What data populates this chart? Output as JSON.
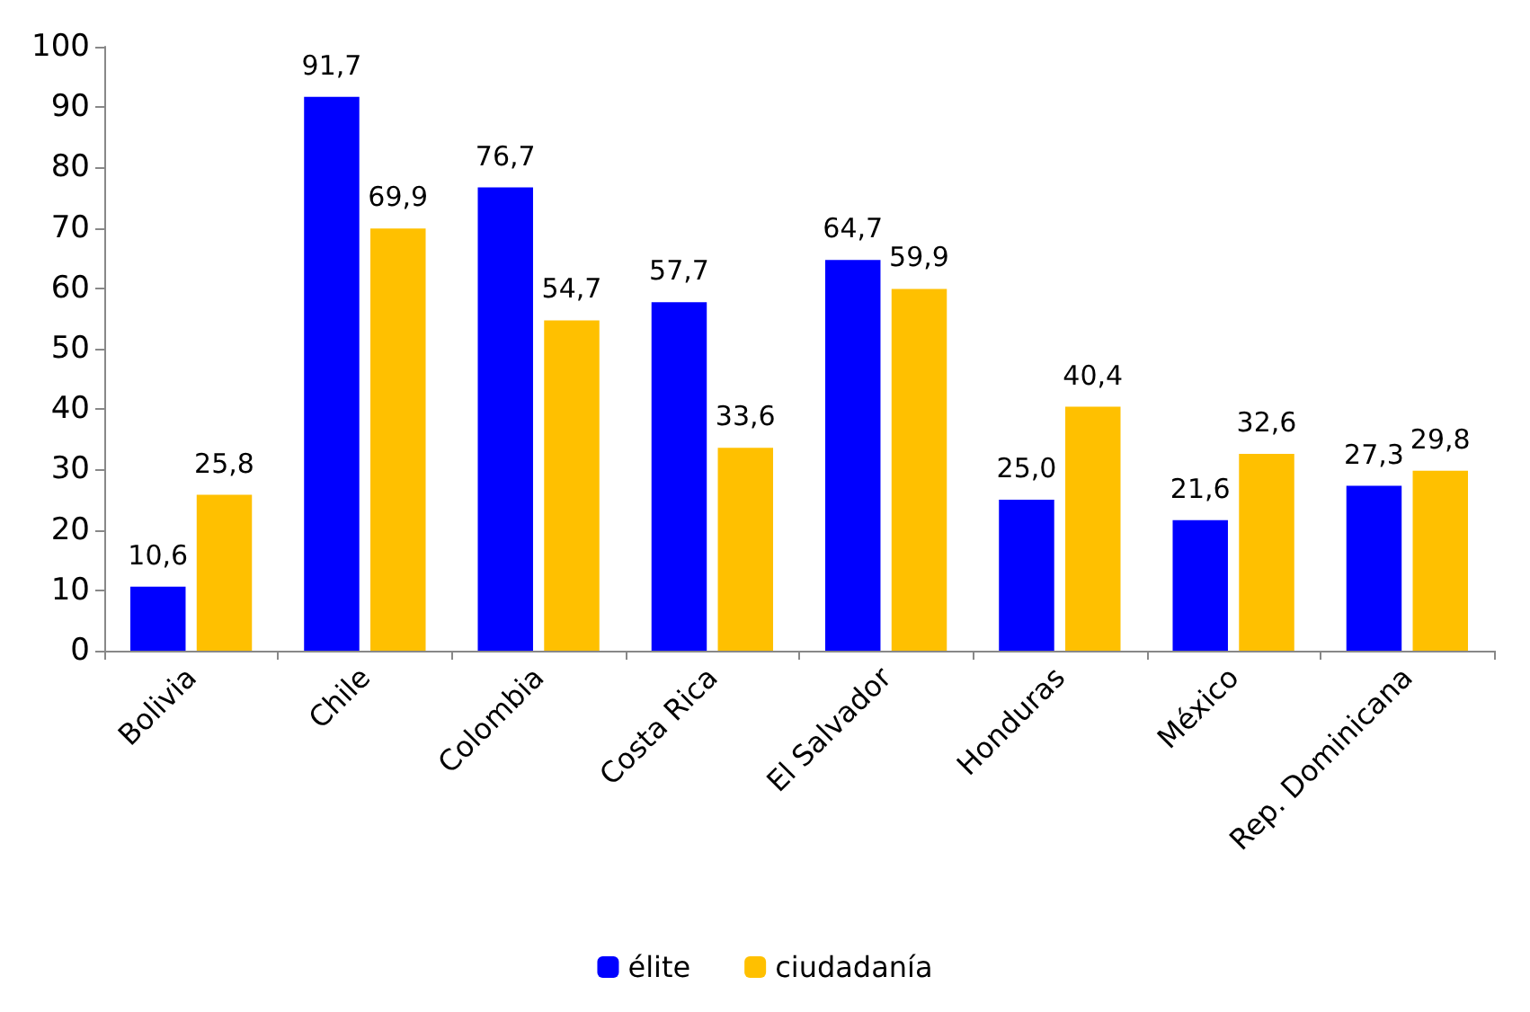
{
  "chart_data": {
    "type": "bar",
    "categories": [
      "Bolivia",
      "Chile",
      "Colombia",
      "Costa Rica",
      "El Salvador",
      "Honduras",
      "México",
      "Rep. Dominicana"
    ],
    "series": [
      {
        "name": "élite",
        "color": "#0000ff",
        "values": [
          10.6,
          91.7,
          76.7,
          57.7,
          64.7,
          25.0,
          21.6,
          27.3
        ],
        "value_labels": [
          "10,6",
          "91,7",
          "76,7",
          "57,7",
          "64,7",
          "25,0",
          "21,6",
          "27,3"
        ]
      },
      {
        "name": "ciudadanía",
        "color": "#ffc000",
        "values": [
          25.8,
          69.9,
          54.7,
          33.6,
          59.9,
          40.4,
          32.6,
          29.8
        ],
        "value_labels": [
          "25,8",
          "69,9",
          "54,7",
          "33,6",
          "59,9",
          "40,4",
          "32,6",
          "29,8"
        ]
      }
    ],
    "ylim": [
      0,
      100
    ],
    "yticks": [
      0,
      10,
      20,
      30,
      40,
      50,
      60,
      70,
      80,
      90,
      100
    ],
    "grid": false,
    "legend": "bottom"
  }
}
